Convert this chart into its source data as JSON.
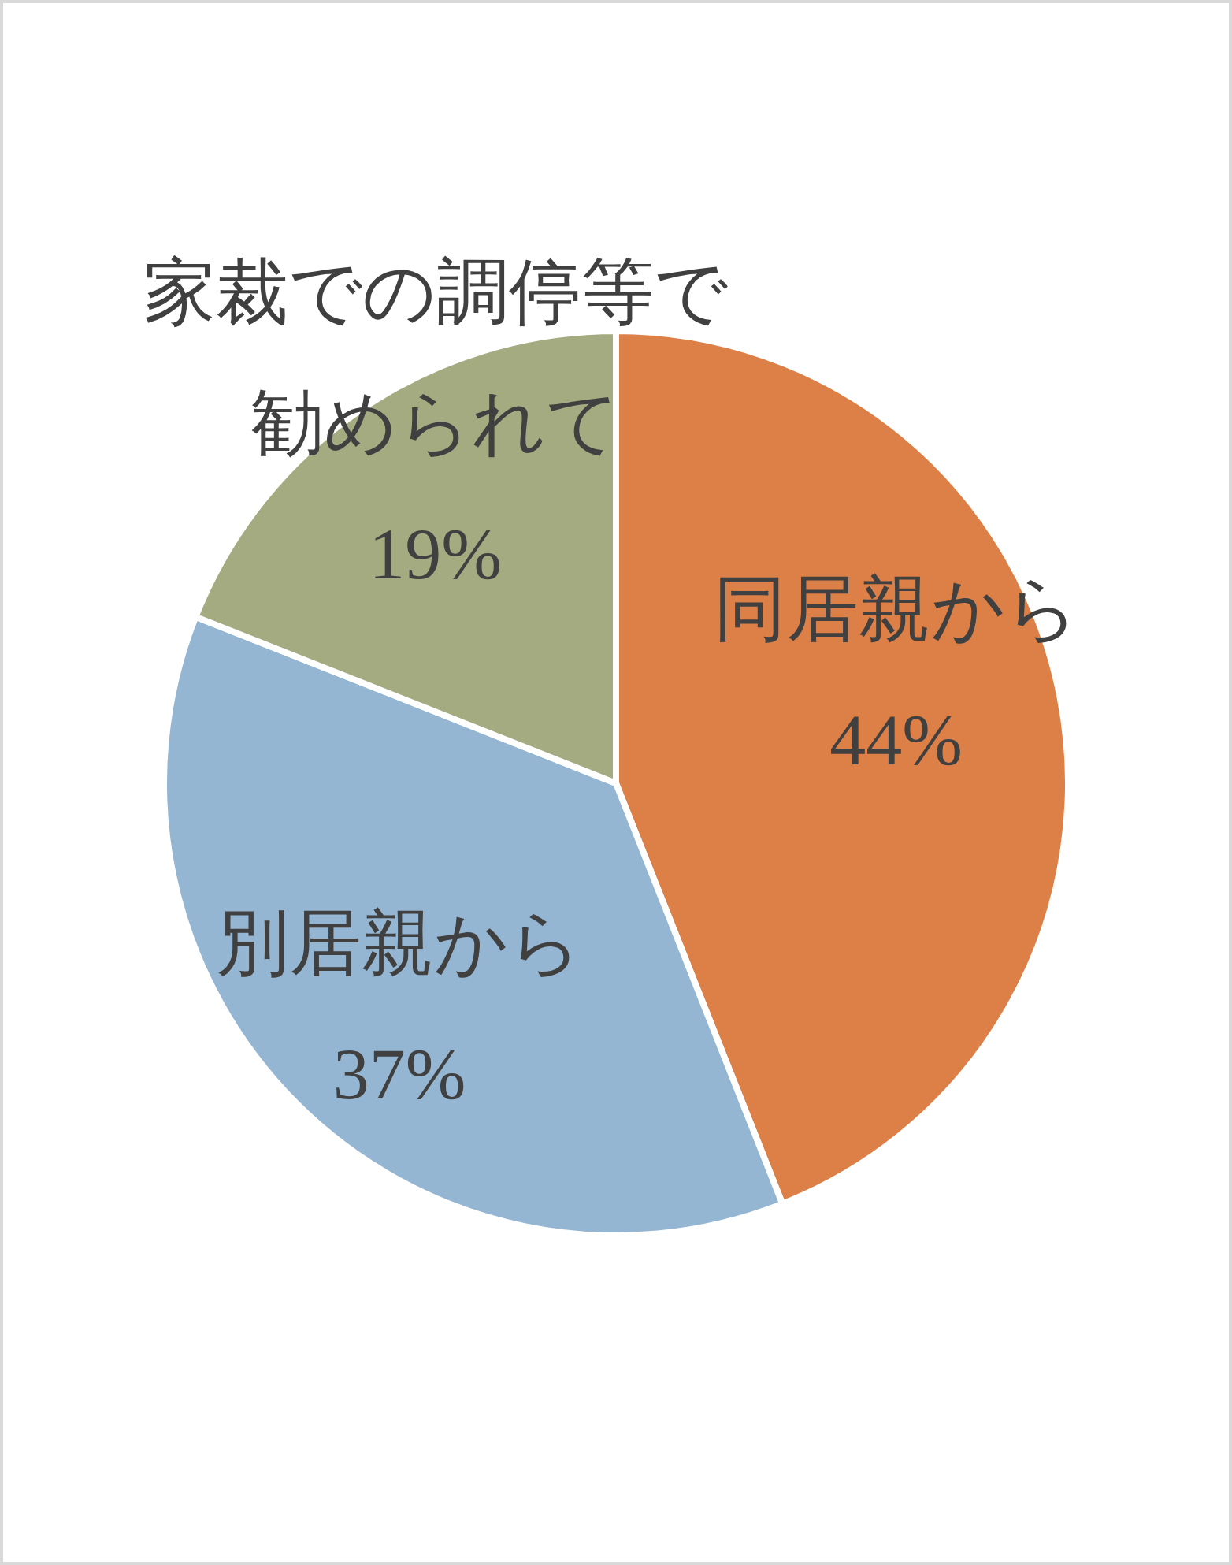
{
  "chart_data": {
    "type": "pie",
    "categories": [
      "同居親から",
      "別居親から",
      "家裁での調停等で勧められて"
    ],
    "values": [
      44,
      37,
      19
    ],
    "colors": [
      "#dd8047",
      "#94b6d2",
      "#a5ab81"
    ],
    "value_labels": [
      "44%",
      "37%",
      "19%"
    ]
  }
}
